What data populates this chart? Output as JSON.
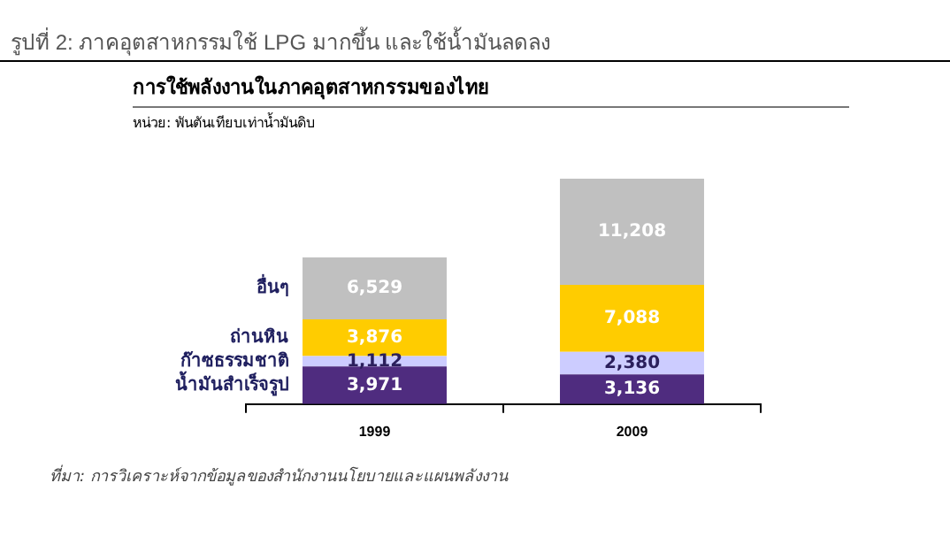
{
  "chart_data": {
    "type": "bar",
    "title": "การใช้พลังงานในภาคอุตสาหกรรมของไทย",
    "subtitle": "หน่วย: พันตันเทียบเท่าน้ำมันดิบ",
    "annotations": [
      "รูปที่ 2: ภาคอุตสาหกรรมใช้ LPG มากขึ้น และใช้น้ำมันลดลง",
      "ที่มา:  การวิเคราะห์จากข้อมูลของสำนักงานนโยบายและแผนพลังงาน"
    ],
    "categories": [
      "1999",
      "2009"
    ],
    "stacked": true,
    "legend": false,
    "series": [
      {
        "name": "น้ำมันสำเร็จรูป",
        "color": "#4f2c7f",
        "values": [
          3971,
          3136
        ],
        "value_labels": [
          "3,971",
          "3,136"
        ]
      },
      {
        "name": "ก๊าซธรรมชาติ",
        "color": "#ccccff",
        "values": [
          1112,
          2380
        ],
        "value_labels": [
          "1,112",
          "2,380"
        ]
      },
      {
        "name": "ถ่านหิน",
        "color": "#ffcc00",
        "values": [
          3876,
          7088
        ],
        "value_labels": [
          "3,876",
          "7,088"
        ]
      },
      {
        "name": "อื่นๆ",
        "color": "#c0c0c0",
        "values": [
          6529,
          11208
        ],
        "value_labels": [
          "6,529",
          "11,208"
        ]
      }
    ]
  }
}
